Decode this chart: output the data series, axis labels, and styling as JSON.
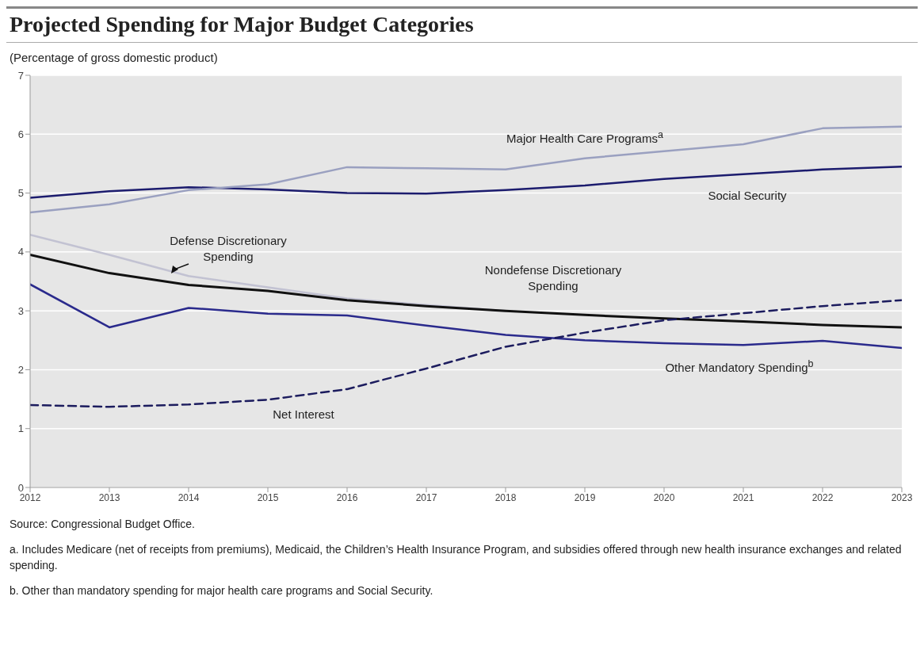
{
  "chart_data": {
    "type": "line",
    "title": "Projected Spending for Major Budget Categories",
    "subtitle": "(Percentage of gross domestic product)",
    "x": [
      2012,
      2013,
      2014,
      2015,
      2016,
      2017,
      2018,
      2019,
      2020,
      2021,
      2022,
      2023
    ],
    "series": [
      {
        "name": "Social Security",
        "color": "#1c1c6e",
        "values": [
          4.92,
          5.03,
          5.1,
          5.06,
          5.0,
          4.99,
          5.05,
          5.13,
          5.24,
          5.32,
          5.4,
          5.45
        ]
      },
      {
        "name": "Major Health Care Programs$^{a}$",
        "color": "#9aa0c0",
        "values": [
          4.67,
          4.81,
          5.05,
          5.15,
          5.44,
          5.42,
          5.4,
          5.59,
          5.71,
          5.83,
          6.1,
          6.13
        ]
      },
      {
        "name": "Defense Discretionary Spending",
        "color": "#c2c2d2",
        "values": [
          4.29,
          3.95,
          3.59,
          3.4,
          3.21,
          3.1,
          3.0,
          null,
          null,
          null,
          null,
          null
        ]
      },
      {
        "name": "Nondefense Discretionary Spending",
        "color": "#111111",
        "values": [
          3.95,
          3.64,
          3.44,
          3.34,
          3.18,
          3.08,
          3.0,
          2.93,
          2.87,
          2.82,
          2.76,
          2.72
        ]
      },
      {
        "name": "Other Mandatory Spending$^{b}$",
        "color": "#2a2a8c",
        "values": [
          3.45,
          2.72,
          3.05,
          2.95,
          2.92,
          2.75,
          2.59,
          2.5,
          2.45,
          2.42,
          2.49,
          2.37
        ]
      },
      {
        "name": "Net Interest",
        "color": "#1c1c5e",
        "line_style": "dashed",
        "values": [
          1.4,
          1.37,
          1.41,
          1.49,
          1.67,
          2.02,
          2.39,
          2.63,
          2.84,
          2.96,
          3.08,
          3.18
        ]
      }
    ],
    "xlim": [
      2012,
      2023
    ],
    "xticks": [
      2012,
      2013,
      2014,
      2015,
      2016,
      2017,
      2018,
      2019,
      2020,
      2021,
      2022,
      2023
    ],
    "ylim": [
      0,
      7
    ],
    "yticks": [
      0,
      1,
      2,
      3,
      4,
      5,
      6,
      7
    ],
    "grid": "y",
    "legend": false,
    "marker": "none",
    "annotations": [
      "Source: Congressional Budget Office.",
      "a. Includes Medicare (net of receipts from premiums), Medicaid, the Children’s Health Insurance Program, and subsidies offered through new health insurance exchanges and related spending.",
      "b. Other than mandatory spending for major health care programs and Social Security."
    ]
  }
}
